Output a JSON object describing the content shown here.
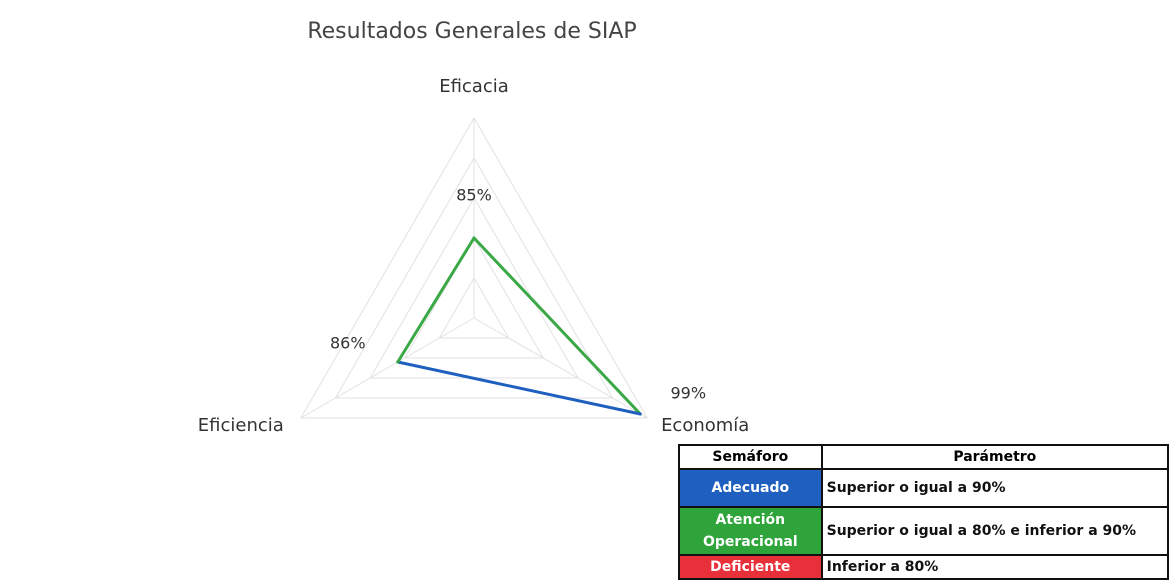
{
  "chart_data": {
    "type": "radar",
    "title": "Resultados Generales de SIAP",
    "categories": [
      "Eficacia",
      "Economía",
      "Eficiencia"
    ],
    "series": [
      {
        "values": [
          85,
          99,
          86
        ],
        "value_labels": [
          "85%",
          "99%",
          "86%"
        ],
        "color": "#3aa845",
        "segment_colors": [
          "#3aa845",
          "#1f5fbf",
          "#3aa845"
        ]
      }
    ],
    "rlim": [
      75,
      100
    ],
    "rticks": [
      80,
      85,
      90,
      95,
      100
    ],
    "grid": true
  },
  "table": {
    "header": [
      "Semáforo",
      "Parámetro"
    ],
    "rows": [
      {
        "status": "Adecuado",
        "parameter": "Superior o igual a 90%",
        "color": "#1f5fbf"
      },
      {
        "status": "Atención Operacional",
        "parameter": "Superior o igual a 80% e inferior a 90%",
        "color": "#2ea43a"
      },
      {
        "status": "Deficiente",
        "parameter": "Inferior a 80%",
        "color": "#e8303a"
      }
    ]
  }
}
